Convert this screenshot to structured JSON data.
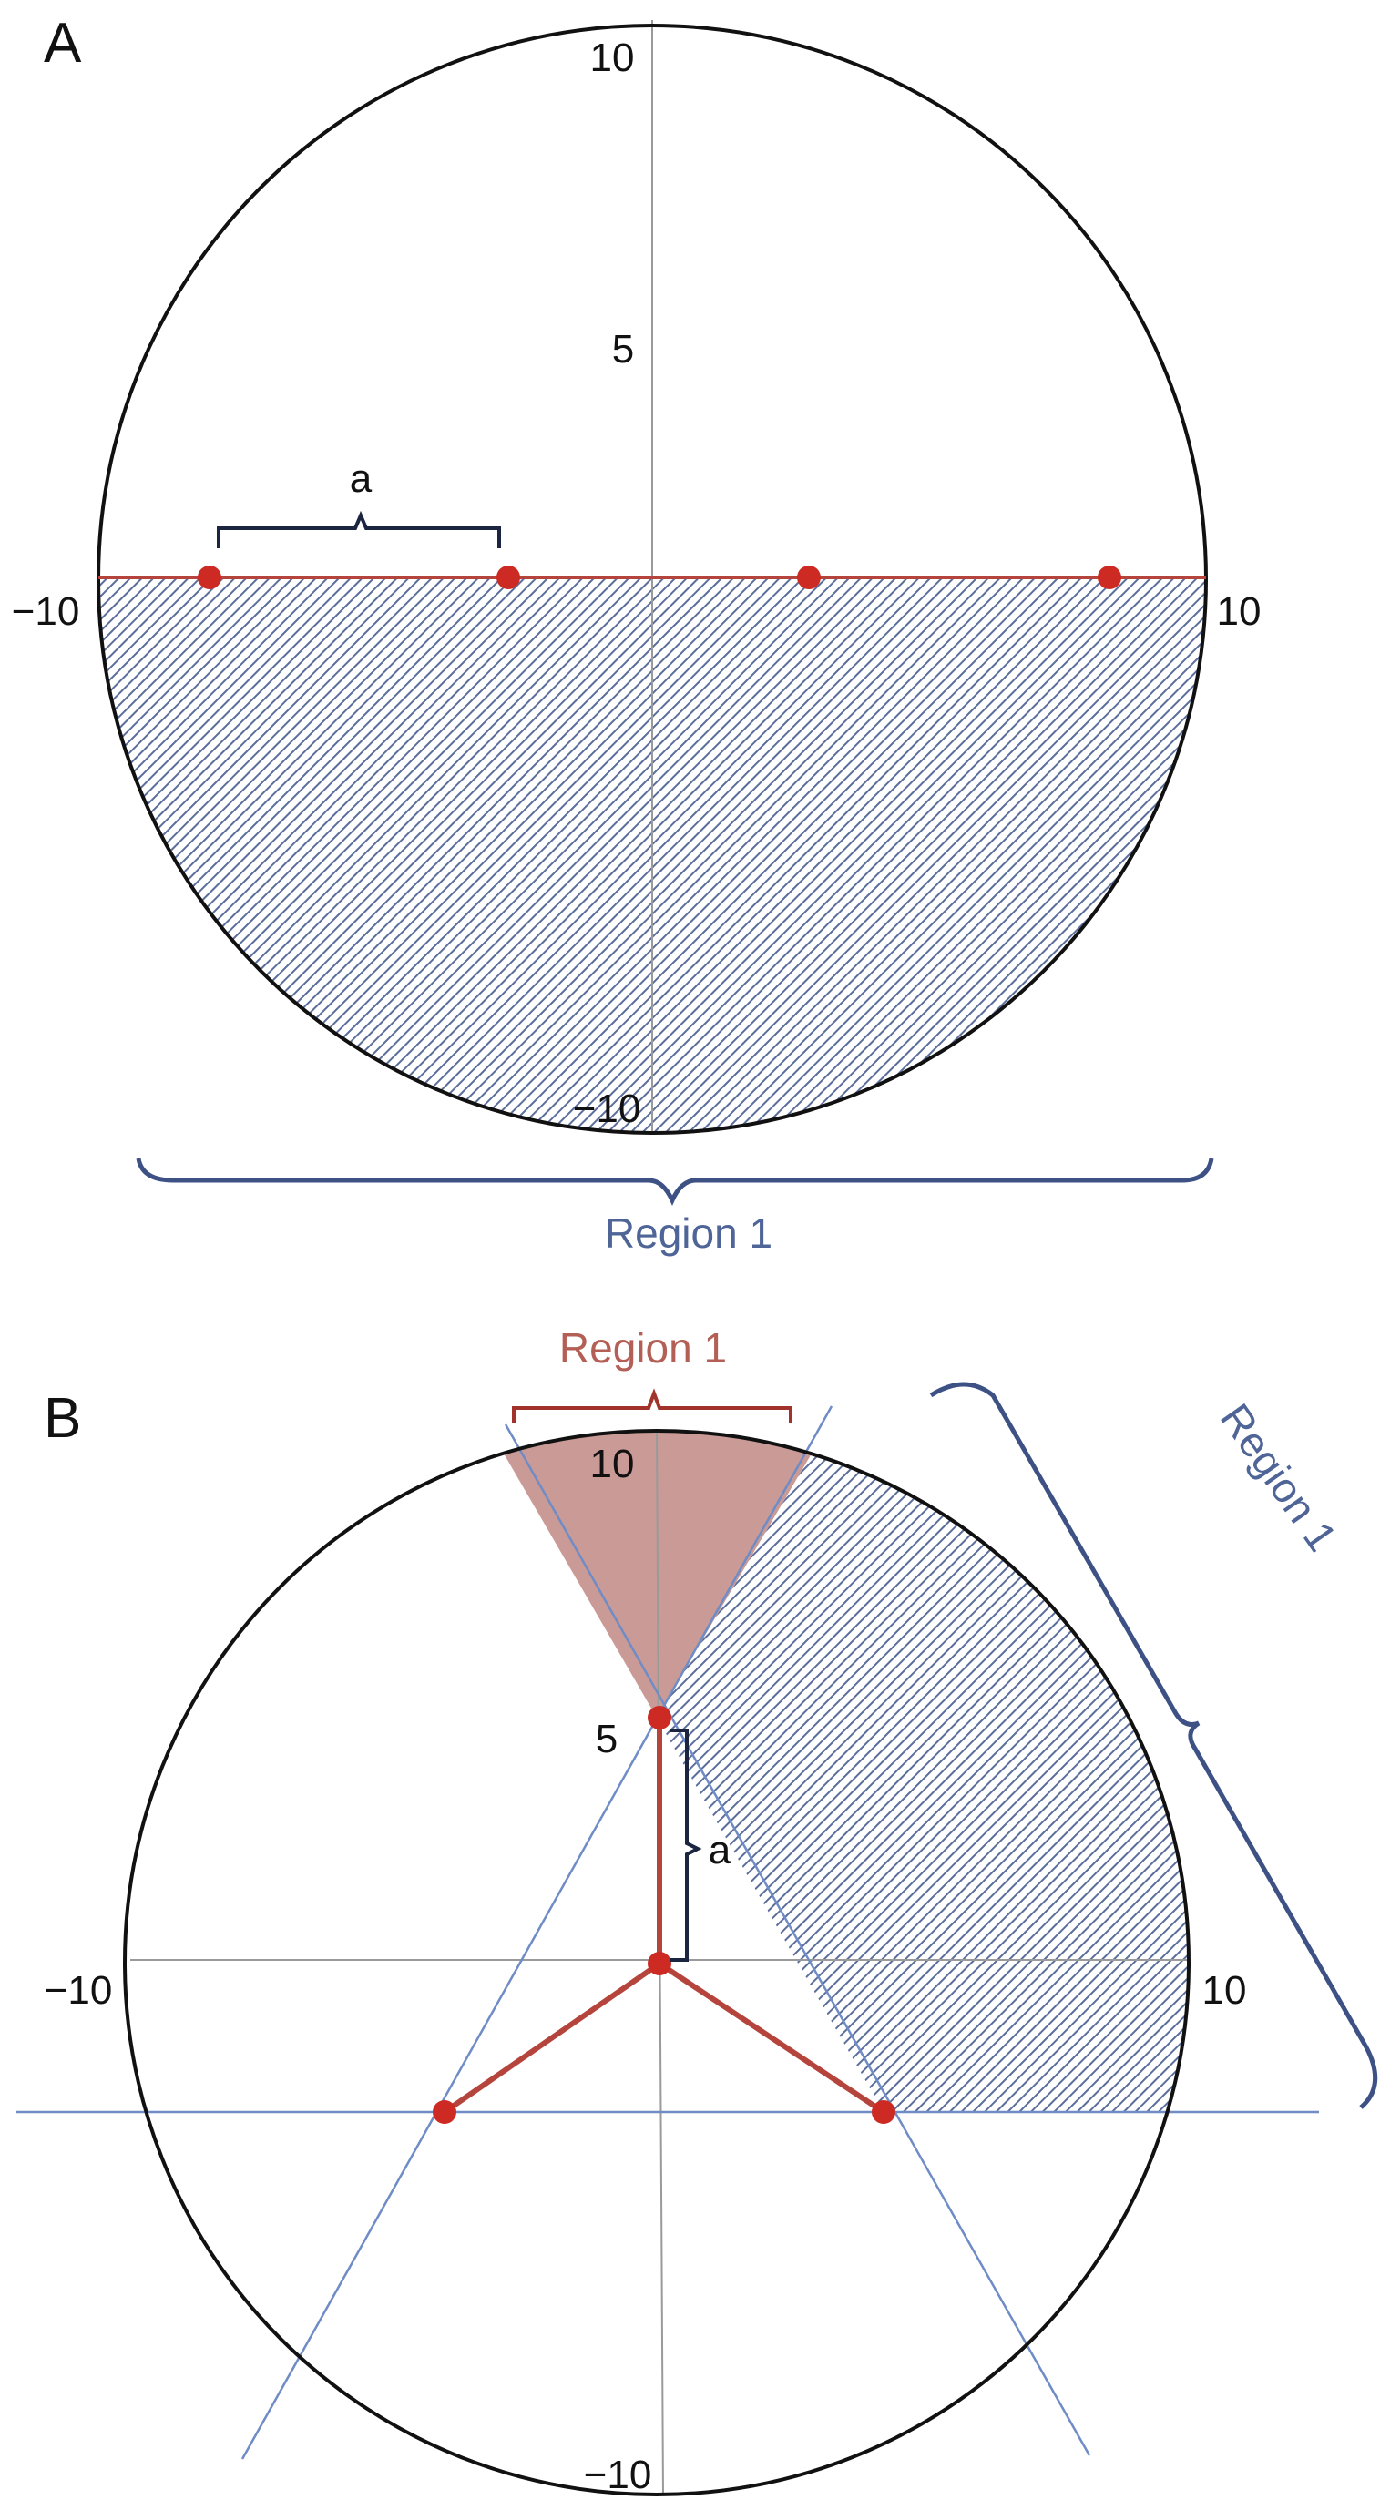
{
  "panel_a": {
    "letter": "A",
    "ticks": {
      "top": "10",
      "mid": "5",
      "left": "−10",
      "right": "10",
      "bottom": "−10"
    },
    "spacing_label": "a",
    "region_label": "Region 1",
    "points": 4
  },
  "panel_b": {
    "letter": "B",
    "ticks": {
      "top": "10",
      "mid": "5",
      "left": "−10",
      "right": "10",
      "bottom": "−10"
    },
    "spacing_label": "a",
    "region_top_label": "Region 1",
    "region_side_label": "Region 1",
    "points": 4
  },
  "colors": {
    "hatch": "#5b6e9b",
    "red_point": "#cc2a22",
    "red_line": "#b5443c",
    "pink_fill": "#c99a96",
    "blue_line": "#6f8cc6",
    "bracket_blue": "#3d5185",
    "region_red_text": "#b35f55",
    "bracket_dark": "#1b2540"
  }
}
